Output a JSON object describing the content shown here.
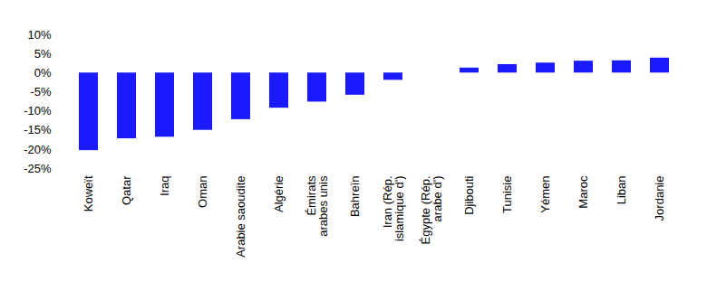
{
  "chart_data": {
    "type": "bar",
    "categories": [
      "Koweït",
      "Qatar",
      "Iraq",
      "Oman",
      "Arabie saoudite",
      "Algérie",
      "Émirats\narabes unis",
      "Bahreïn",
      "Iran (Rép.\nislamique d')",
      "Égypte (Rép.\narabe d')",
      "Djibouti",
      "Tunisie",
      "Yémen",
      "Maroc",
      "Liban",
      "Jordanie"
    ],
    "values": [
      -20.3,
      -17.2,
      -16.8,
      -15.0,
      -12.2,
      -9.2,
      -7.6,
      -5.8,
      -1.9,
      0,
      1.3,
      2.2,
      2.6,
      3.1,
      3.2,
      3.9
    ],
    "color": "#1a1aff",
    "ylim": [
      -25,
      10
    ],
    "yticks": [
      {
        "value": 10,
        "label": "10%"
      },
      {
        "value": 5,
        "label": "5%"
      },
      {
        "value": 0,
        "label": "0%"
      },
      {
        "value": -5,
        "label": "-5%"
      },
      {
        "value": -10,
        "label": "-10%"
      },
      {
        "value": -15,
        "label": "-15%"
      },
      {
        "value": -20,
        "label": "-20%"
      },
      {
        "value": -25,
        "label": "-25%"
      }
    ],
    "grid": false
  }
}
